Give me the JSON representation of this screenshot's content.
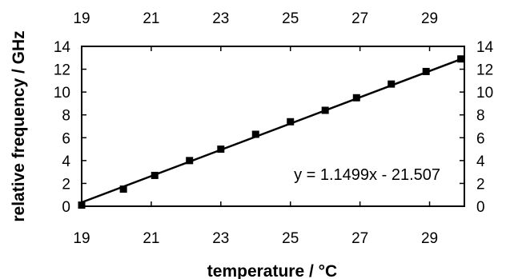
{
  "chart_data": {
    "type": "scatter",
    "title": "",
    "xlabel": "temperature / °C",
    "ylabel": "relative frequency / GHz",
    "xlim": [
      19,
      30
    ],
    "ylim": [
      0,
      14
    ],
    "x_ticks": [
      19,
      21,
      23,
      25,
      27,
      29
    ],
    "y_ticks": [
      0,
      2,
      4,
      6,
      8,
      10,
      12,
      14
    ],
    "grid": false,
    "series": [
      {
        "marker": "square",
        "x": [
          19.0,
          20.2,
          21.1,
          22.1,
          23.0,
          24.0,
          25.0,
          26.0,
          26.9,
          27.9,
          28.9,
          29.9
        ],
        "y": [
          0.1,
          1.5,
          2.7,
          4.0,
          5.0,
          6.3,
          7.4,
          8.4,
          9.5,
          10.7,
          11.8,
          12.9
        ]
      }
    ],
    "trendline": {
      "slope": 1.1499,
      "intercept": -21.507,
      "label": "y = 1.1499x - 21.507"
    }
  }
}
